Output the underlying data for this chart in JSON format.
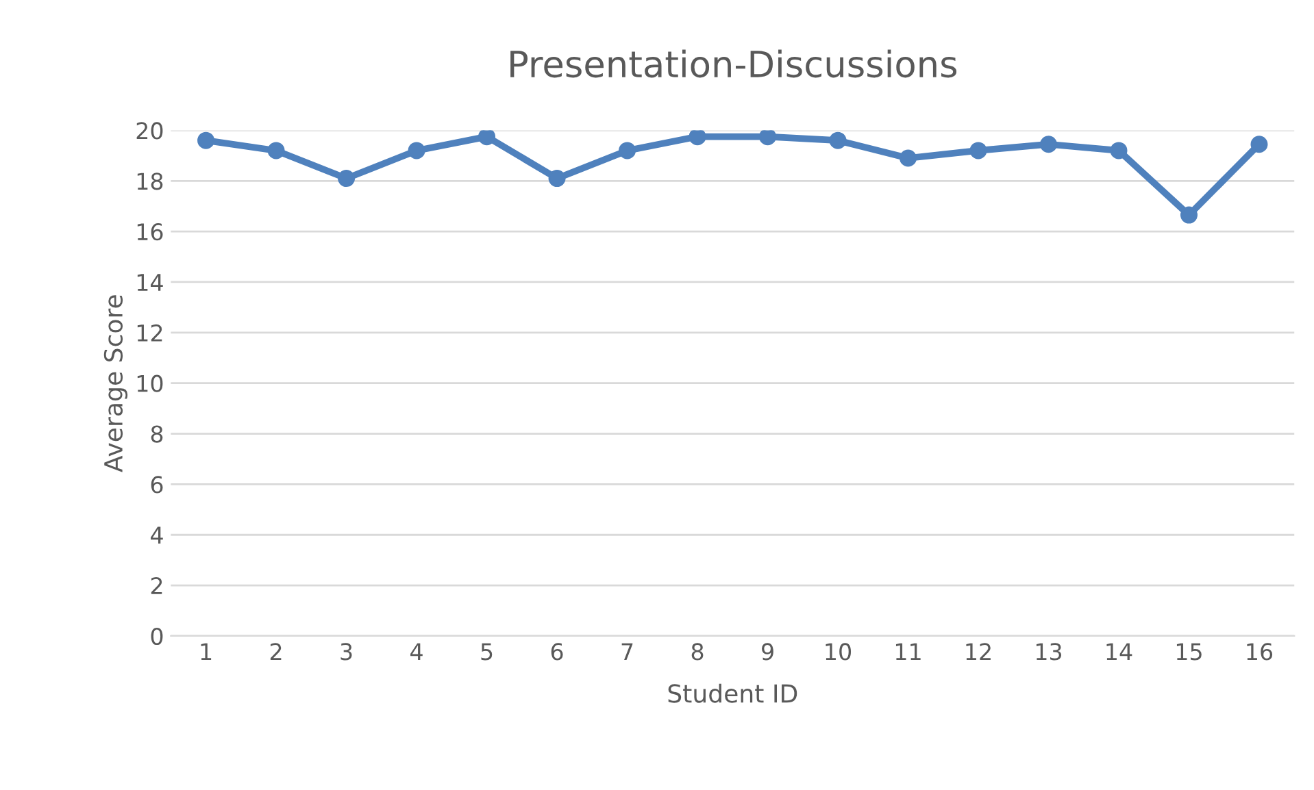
{
  "chart_data": {
    "type": "line",
    "title": "Presentation-Discussions",
    "xlabel": "Student ID",
    "ylabel": "Average Score",
    "categories": [
      "1",
      "2",
      "3",
      "4",
      "5",
      "6",
      "7",
      "8",
      "9",
      "10",
      "11",
      "12",
      "13",
      "14",
      "15",
      "16"
    ],
    "series": [
      {
        "color": "#4f81bd",
        "values": [
          19.6,
          19.2,
          18.1,
          19.2,
          19.75,
          18.1,
          19.2,
          19.75,
          19.75,
          19.6,
          18.9,
          19.2,
          19.45,
          19.2,
          16.65,
          19.45
        ]
      }
    ],
    "ylim": [
      0,
      20
    ],
    "yticks": [
      0,
      2,
      4,
      6,
      8,
      10,
      12,
      14,
      16,
      18,
      20
    ],
    "grid": "y",
    "marker": "circle",
    "line_style": "solid",
    "legend": false
  }
}
